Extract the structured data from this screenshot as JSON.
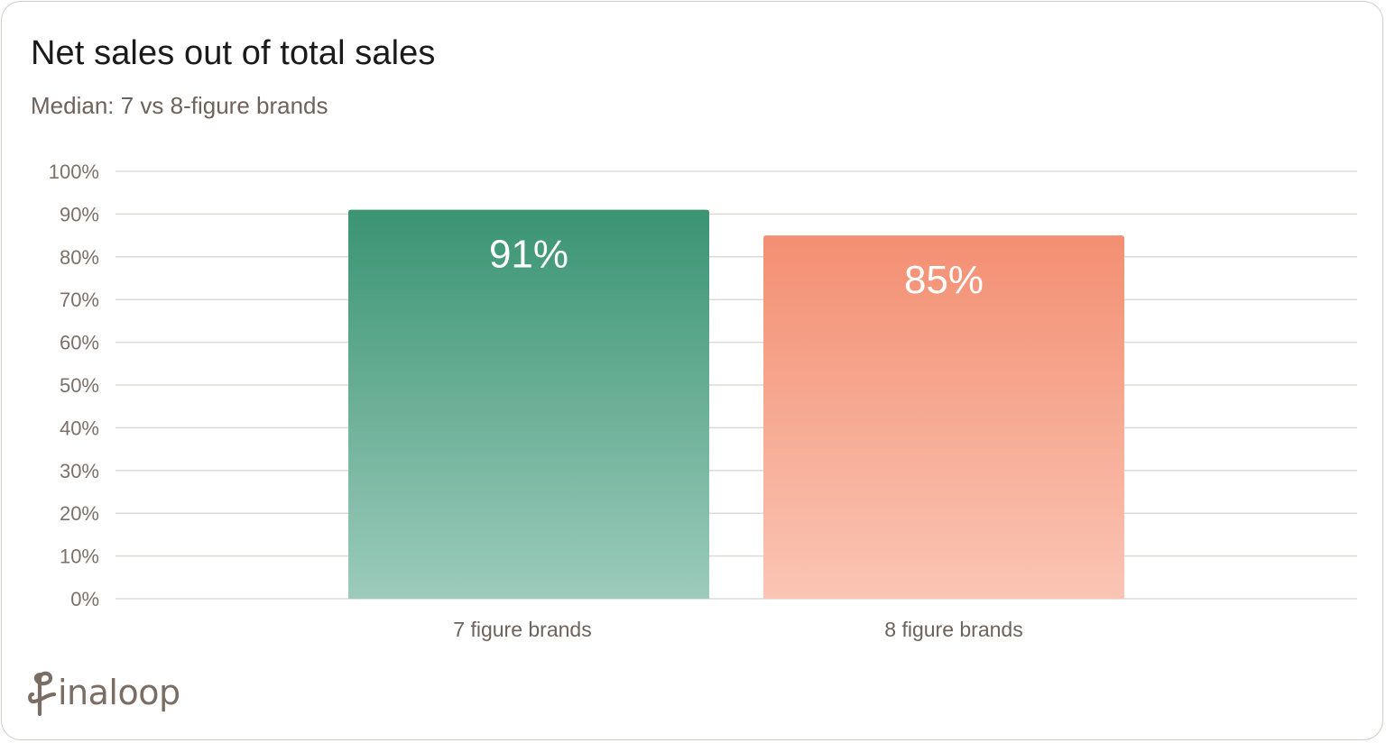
{
  "colors": {
    "bar_1_top": "#3a9474",
    "bar_1_bottom": "#9ccbbb",
    "bar_2_top": "#f38f72",
    "bar_2_bottom": "#fac5b4",
    "grid": "#dedad6",
    "border": "#d3cbc3"
  },
  "logo": {
    "icon": "finaloop-logo-icon",
    "text": "inaloop"
  },
  "chart_data": {
    "type": "bar",
    "title": "Net sales out of total sales",
    "subtitle": "Median: 7 vs 8-figure brands",
    "categories": [
      "7 figure brands",
      "8 figure brands"
    ],
    "values": [
      91,
      85
    ],
    "value_labels": [
      "91%",
      "85%"
    ],
    "yticks": [
      0,
      10,
      20,
      30,
      40,
      50,
      60,
      70,
      80,
      90,
      100
    ],
    "ytick_labels": [
      "0%",
      "10%",
      "20%",
      "30%",
      "40%",
      "50%",
      "60%",
      "70%",
      "80%",
      "90%",
      "100%"
    ],
    "ylim": [
      0,
      100
    ],
    "xlabel": "",
    "ylabel": "",
    "grid": true,
    "legend": "none"
  }
}
